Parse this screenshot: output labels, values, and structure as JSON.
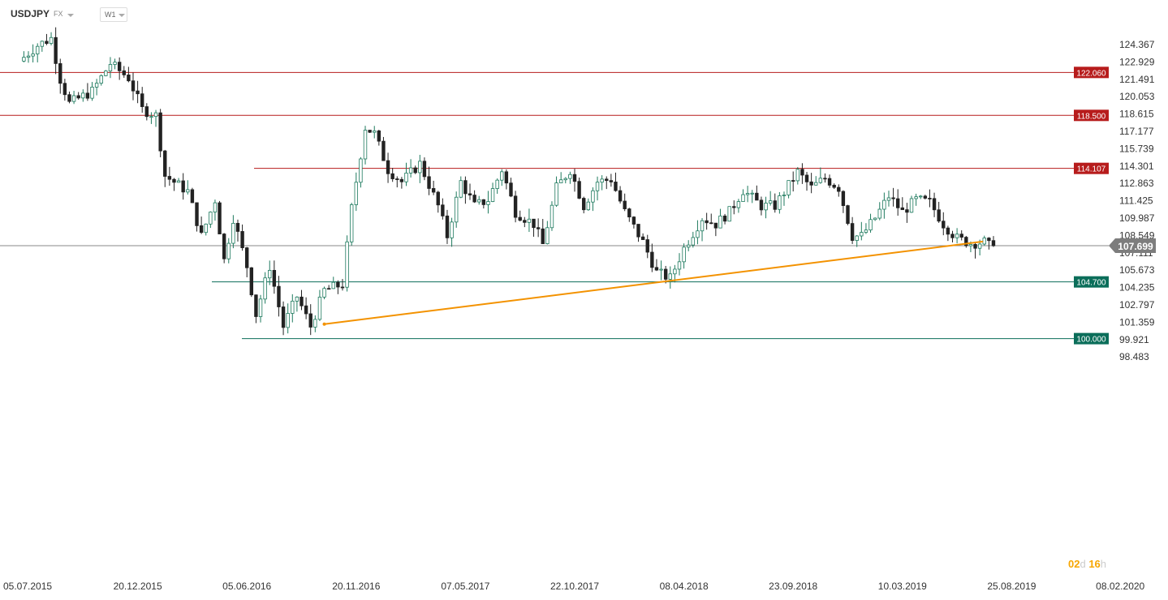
{
  "header": {
    "symbol": "USDJPY",
    "market": "FX",
    "timeframe": "W1"
  },
  "countdown": {
    "days": "02",
    "day_unit": "d",
    "hours": "16",
    "hour_unit": "h"
  },
  "colors": {
    "bull": "#1e7a5e",
    "bear": "#222222",
    "resistance": "#b71c1c",
    "support": "#0b6e5a",
    "trendline": "#f39200",
    "current": "#888888"
  },
  "chart_data": {
    "type": "candlestick",
    "title": "",
    "xlabel": "",
    "ylabel": "",
    "ylim": [
      97.8,
      125.9
    ],
    "price_ticks": [
      "124.367",
      "122.929",
      "121.491",
      "120.053",
      "118.615",
      "117.177",
      "115.739",
      "114.301",
      "112.863",
      "111.425",
      "109.987",
      "108.549",
      "107.111",
      "105.673",
      "104.235",
      "102.797",
      "101.359",
      "99.921",
      "98.483"
    ],
    "date_ticks": [
      "05.07.2015",
      "20.12.2015",
      "05.06.2016",
      "20.11.2016",
      "07.05.2017",
      "22.10.2017",
      "08.04.2018",
      "23.09.2018",
      "10.03.2019",
      "25.08.2019",
      "08.02.2020"
    ],
    "current_price": "107.699",
    "levels": [
      {
        "label": "122.060",
        "value": 122.06,
        "kind": "resistance"
      },
      {
        "label": "118.500",
        "value": 118.5,
        "kind": "resistance"
      },
      {
        "label": "114.107",
        "value": 114.107,
        "kind": "resistance"
      },
      {
        "label": "104.700",
        "value": 104.7,
        "kind": "support"
      },
      {
        "label": "100.000",
        "value": 100.0,
        "kind": "support"
      }
    ],
    "trendline": {
      "start": {
        "date": "2016-10-02",
        "price": 101.2
      },
      "end": {
        "date": "2019-08-04",
        "price": 108.2
      }
    },
    "anchor_points": [
      [
        "2015-06-28",
        123.0
      ],
      [
        "2015-07-26",
        124.3
      ],
      [
        "2015-08-16",
        124.9
      ],
      [
        "2015-08-30",
        121.5
      ],
      [
        "2015-09-13",
        119.5
      ],
      [
        "2015-10-18",
        120.5
      ],
      [
        "2015-11-15",
        122.8
      ],
      [
        "2015-12-13",
        121.6
      ],
      [
        "2016-01-03",
        119.0
      ],
      [
        "2016-01-24",
        118.5
      ],
      [
        "2016-02-07",
        113.5
      ],
      [
        "2016-03-13",
        112.2
      ],
      [
        "2016-04-03",
        108.5
      ],
      [
        "2016-04-24",
        111.5
      ],
      [
        "2016-05-08",
        106.5
      ],
      [
        "2016-05-22",
        110.0
      ],
      [
        "2016-06-12",
        106.0
      ],
      [
        "2016-06-26",
        102.0
      ],
      [
        "2016-07-17",
        106.0
      ],
      [
        "2016-08-07",
        101.0
      ],
      [
        "2016-08-28",
        103.5
      ],
      [
        "2016-09-18",
        101.0
      ],
      [
        "2016-10-09",
        104.0
      ],
      [
        "2016-11-06",
        104.5
      ],
      [
        "2016-11-20",
        110.8
      ],
      [
        "2016-12-11",
        117.5
      ],
      [
        "2016-12-25",
        117.0
      ],
      [
        "2017-01-15",
        114.0
      ],
      [
        "2017-02-05",
        113.0
      ],
      [
        "2017-03-05",
        114.5
      ],
      [
        "2017-04-02",
        111.0
      ],
      [
        "2017-04-16",
        108.5
      ],
      [
        "2017-05-07",
        113.0
      ],
      [
        "2017-05-28",
        111.0
      ],
      [
        "2017-06-18",
        111.5
      ],
      [
        "2017-07-09",
        114.0
      ],
      [
        "2017-07-30",
        110.5
      ],
      [
        "2017-08-27",
        109.5
      ],
      [
        "2017-09-10",
        107.8
      ],
      [
        "2017-10-01",
        112.5
      ],
      [
        "2017-10-22",
        114.0
      ],
      [
        "2017-11-12",
        111.0
      ],
      [
        "2017-12-03",
        113.0
      ],
      [
        "2017-12-24",
        113.2
      ],
      [
        "2018-01-14",
        110.5
      ],
      [
        "2018-02-11",
        108.0
      ],
      [
        "2018-03-04",
        105.5
      ],
      [
        "2018-03-25",
        105.0
      ],
      [
        "2018-04-15",
        107.5
      ],
      [
        "2018-05-13",
        110.0
      ],
      [
        "2018-06-03",
        109.5
      ],
      [
        "2018-06-24",
        110.5
      ],
      [
        "2018-07-15",
        112.3
      ],
      [
        "2018-08-12",
        111.0
      ],
      [
        "2018-09-02",
        111.0
      ],
      [
        "2018-09-23",
        112.7
      ],
      [
        "2018-10-07",
        113.8
      ],
      [
        "2018-10-28",
        112.5
      ],
      [
        "2018-11-18",
        113.3
      ],
      [
        "2018-12-09",
        112.5
      ],
      [
        "2018-12-30",
        108.5
      ],
      [
        "2019-01-13",
        108.5
      ],
      [
        "2019-02-03",
        110.0
      ],
      [
        "2019-02-24",
        111.8
      ],
      [
        "2019-03-17",
        110.5
      ],
      [
        "2019-04-07",
        111.5
      ],
      [
        "2019-04-28",
        111.3
      ],
      [
        "2019-05-19",
        109.5
      ],
      [
        "2019-06-09",
        108.3
      ],
      [
        "2019-06-30",
        107.9
      ],
      [
        "2019-07-21",
        108.0
      ],
      [
        "2019-07-28",
        107.699
      ]
    ]
  }
}
